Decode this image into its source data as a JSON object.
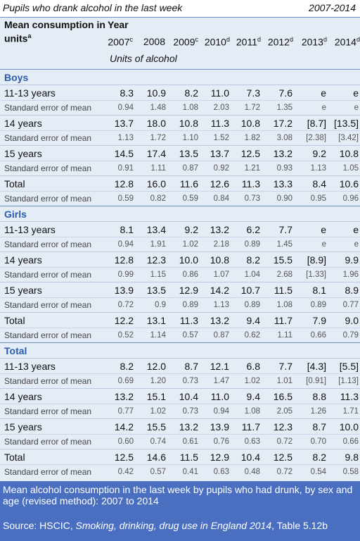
{
  "header": {
    "title": "Pupils who drank alcohol in the last week",
    "range": "2007-2014",
    "measure": "Mean consumption in units",
    "measure_note": "a",
    "year_label": "Year",
    "units_label": "Units of alcohol",
    "years": [
      {
        "year": "2007",
        "note": "c"
      },
      {
        "year": "2008",
        "note": ""
      },
      {
        "year": "2009",
        "note": "c"
      },
      {
        "year": "2010",
        "note": "d"
      },
      {
        "year": "2011",
        "note": "d"
      },
      {
        "year": "2012",
        "note": "d"
      },
      {
        "year": "2013",
        "note": "d"
      },
      {
        "year": "2014",
        "note": "d"
      }
    ]
  },
  "sections": [
    {
      "name": "Boys",
      "rows": [
        {
          "label": "11-13 years",
          "kind": "main",
          "values": [
            "8.3",
            "10.9",
            "8.2",
            "11.0",
            "7.3",
            "7.6",
            "e",
            "e"
          ]
        },
        {
          "label": "Standard error of mean",
          "kind": "se",
          "values": [
            "0.94",
            "1.48",
            "1.08",
            "2.03",
            "1.72",
            "1.35",
            "e",
            "e"
          ]
        },
        {
          "label": "14 years",
          "kind": "main",
          "values": [
            "13.7",
            "18.0",
            "10.8",
            "11.3",
            "10.8",
            "17.2",
            "[8.7]",
            "[13.5]"
          ]
        },
        {
          "label": "Standard error of mean",
          "kind": "se",
          "values": [
            "1.13",
            "1.72",
            "1.10",
            "1.52",
            "1.82",
            "3.08",
            "[2.38]",
            "[3.42]"
          ]
        },
        {
          "label": "15 years",
          "kind": "main",
          "values": [
            "14.5",
            "17.4",
            "13.5",
            "13.7",
            "12.5",
            "13.2",
            "9.2",
            "10.8"
          ]
        },
        {
          "label": "Standard error of mean",
          "kind": "se",
          "values": [
            "0.91",
            "1.11",
            "0.87",
            "0.92",
            "1.21",
            "0.93",
            "1.13",
            "1.05"
          ]
        },
        {
          "label": "Total",
          "kind": "main",
          "values": [
            "12.8",
            "16.0",
            "11.6",
            "12.6",
            "11.3",
            "13.3",
            "8.4",
            "10.6"
          ]
        },
        {
          "label": "Standard error of mean",
          "kind": "se",
          "values": [
            "0.59",
            "0.82",
            "0.59",
            "0.84",
            "0.73",
            "0.90",
            "0.95",
            "0.96"
          ]
        }
      ]
    },
    {
      "name": "Girls",
      "rows": [
        {
          "label": "11-13 years",
          "kind": "main",
          "values": [
            "8.1",
            "13.4",
            "9.2",
            "13.2",
            "6.2",
            "7.7",
            "e",
            "e"
          ]
        },
        {
          "label": "Standard error of mean",
          "kind": "se",
          "values": [
            "0.94",
            "1.91",
            "1.02",
            "2.18",
            "0.89",
            "1.45",
            "e",
            "e"
          ]
        },
        {
          "label": "14 years",
          "kind": "main",
          "values": [
            "12.8",
            "12.3",
            "10.0",
            "10.8",
            "8.2",
            "15.5",
            "[8.9]",
            "9.9"
          ]
        },
        {
          "label": "Standard error of mean",
          "kind": "se",
          "values": [
            "0.99",
            "1.15",
            "0.86",
            "1.07",
            "1.04",
            "2.68",
            "[1.33]",
            "1.96"
          ]
        },
        {
          "label": "15 years",
          "kind": "main",
          "values": [
            "13.9",
            "13.5",
            "12.9",
            "14.2",
            "10.7",
            "11.5",
            "8.1",
            "8.9"
          ]
        },
        {
          "label": "Standard error of mean",
          "kind": "se",
          "values": [
            "0.72",
            "0.9",
            "0.89",
            "1.13",
            "0.89",
            "1.08",
            "0.89",
            "0.77"
          ]
        },
        {
          "label": "Total",
          "kind": "main",
          "values": [
            "12.2",
            "13.1",
            "11.3",
            "13.2",
            "9.4",
            "11.7",
            "7.9",
            "9.0"
          ]
        },
        {
          "label": "Standard error of mean",
          "kind": "se",
          "values": [
            "0.52",
            "1.14",
            "0.57",
            "0.87",
            "0.62",
            "1.11",
            "0.66",
            "0.79"
          ]
        }
      ]
    },
    {
      "name": "Total",
      "rows": [
        {
          "label": "11-13 years",
          "kind": "main",
          "values": [
            "8.2",
            "12.0",
            "8.7",
            "12.1",
            "6.8",
            "7.7",
            "[4.3]",
            "[5.5]"
          ]
        },
        {
          "label": "Standard error of mean",
          "kind": "se",
          "values": [
            "0.69",
            "1.20",
            "0.73",
            "1.47",
            "1.02",
            "1.01",
            "[0.91]",
            "[1.13]"
          ]
        },
        {
          "label": "14 years",
          "kind": "main",
          "values": [
            "13.2",
            "15.1",
            "10.4",
            "11.0",
            "9.4",
            "16.5",
            "8.8",
            "11.3"
          ]
        },
        {
          "label": "Standard error of mean",
          "kind": "se",
          "values": [
            "0.77",
            "1.02",
            "0.73",
            "0.94",
            "1.08",
            "2.05",
            "1.26",
            "1.71"
          ]
        },
        {
          "label": "15 years",
          "kind": "main",
          "values": [
            "14.2",
            "15.5",
            "13.2",
            "13.9",
            "11.7",
            "12.3",
            "8.7",
            "10.0"
          ]
        },
        {
          "label": "Standard error of mean",
          "kind": "se",
          "values": [
            "0.60",
            "0.74",
            "0.61",
            "0.76",
            "0.63",
            "0.72",
            "0.70",
            "0.66"
          ]
        },
        {
          "label": "Total",
          "kind": "main",
          "values": [
            "12.5",
            "14.6",
            "11.5",
            "12.9",
            "10.4",
            "12.5",
            "8.2",
            "9.8"
          ]
        },
        {
          "label": "Standard error of mean",
          "kind": "se",
          "values": [
            "0.42",
            "0.57",
            "0.41",
            "0.63",
            "0.48",
            "0.72",
            "0.54",
            "0.58"
          ]
        }
      ]
    }
  ],
  "footer": {
    "caption": "Mean alcohol consumption in the last week by pupils who had drunk, by sex and age (revised method): 2007 to 2014",
    "source_prefix": "Source: HSCIC, ",
    "source_title": "Smoking, drinking, drug use in England 2014",
    "source_suffix": ", Table 5.12b"
  },
  "colors": {
    "background": "#e4ecf6",
    "section_heading": "#2a5cab",
    "footer_bg": "#4a6fc0"
  }
}
